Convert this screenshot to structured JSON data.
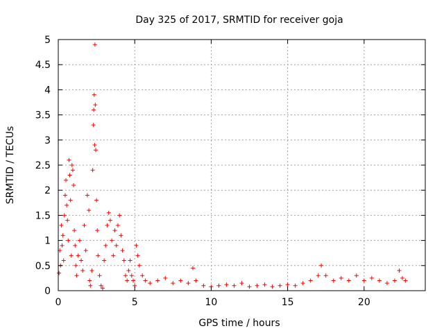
{
  "chart_data": {
    "type": "scatter",
    "title": "Day 325 of 2017, SRMTID for receiver goja",
    "xlabel": "GPS time / hours",
    "ylabel": "SRMTID / TECUs",
    "xlim": [
      0,
      24
    ],
    "ylim": [
      0,
      5
    ],
    "xticks": [
      0,
      5,
      10,
      15,
      20
    ],
    "xtick_labels": [
      "0",
      "5",
      "10",
      "15",
      "20"
    ],
    "yticks": [
      0,
      0.5,
      1,
      1.5,
      2,
      2.5,
      3,
      3.5,
      4,
      4.5,
      5
    ],
    "ytick_labels": [
      "0",
      "0.5",
      "1",
      "1.5",
      "2",
      "2.5",
      "3",
      "3.5",
      "4",
      "4.5",
      "5"
    ],
    "grid": true,
    "marker": "+",
    "color": "#ff0000",
    "series": [
      {
        "name": "SRMTID",
        "points": [
          [
            0.05,
            0.35
          ],
          [
            0.1,
            0.8
          ],
          [
            0.15,
            0.5
          ],
          [
            0.2,
            1.3
          ],
          [
            0.25,
            0.9
          ],
          [
            0.3,
            1.1
          ],
          [
            0.35,
            0.6
          ],
          [
            0.4,
            1.5
          ],
          [
            0.45,
            1.9
          ],
          [
            0.5,
            2.2
          ],
          [
            0.55,
            1.7
          ],
          [
            0.6,
            1.4
          ],
          [
            0.65,
            1.0
          ],
          [
            0.7,
            2.6
          ],
          [
            0.75,
            2.3
          ],
          [
            0.8,
            1.8
          ],
          [
            0.85,
            0.7
          ],
          [
            0.9,
            2.5
          ],
          [
            0.95,
            2.4
          ],
          [
            1.0,
            2.1
          ],
          [
            1.05,
            1.2
          ],
          [
            1.1,
            0.9
          ],
          [
            1.15,
            0.5
          ],
          [
            1.2,
            0.3
          ],
          [
            1.3,
            0.7
          ],
          [
            1.4,
            1.0
          ],
          [
            1.5,
            0.6
          ],
          [
            1.6,
            0.4
          ],
          [
            1.7,
            1.3
          ],
          [
            1.8,
            0.8
          ],
          [
            1.9,
            1.9
          ],
          [
            2.0,
            1.6
          ],
          [
            2.05,
            0.2
          ],
          [
            2.1,
            0.1
          ],
          [
            2.2,
            0.4
          ],
          [
            2.25,
            2.4
          ],
          [
            2.3,
            3.3
          ],
          [
            2.32,
            3.6
          ],
          [
            2.35,
            3.9
          ],
          [
            2.38,
            2.9
          ],
          [
            2.4,
            4.9
          ],
          [
            2.42,
            3.7
          ],
          [
            2.45,
            2.8
          ],
          [
            2.5,
            1.8
          ],
          [
            2.55,
            1.2
          ],
          [
            2.6,
            0.7
          ],
          [
            2.7,
            0.3
          ],
          [
            2.8,
            0.1
          ],
          [
            2.9,
            0.05
          ],
          [
            3.0,
            0.6
          ],
          [
            3.1,
            0.9
          ],
          [
            3.2,
            1.3
          ],
          [
            3.3,
            1.55
          ],
          [
            3.4,
            1.4
          ],
          [
            3.5,
            1.0
          ],
          [
            3.6,
            0.7
          ],
          [
            3.7,
            1.2
          ],
          [
            3.8,
            0.9
          ],
          [
            3.9,
            1.3
          ],
          [
            4.0,
            1.5
          ],
          [
            4.1,
            1.1
          ],
          [
            4.2,
            0.8
          ],
          [
            4.3,
            0.6
          ],
          [
            4.4,
            0.3
          ],
          [
            4.5,
            0.2
          ],
          [
            4.6,
            0.4
          ],
          [
            4.7,
            0.6
          ],
          [
            4.8,
            0.3
          ],
          [
            4.9,
            0.2
          ],
          [
            5.0,
            0.1
          ],
          [
            5.1,
            0.9
          ],
          [
            5.2,
            0.7
          ],
          [
            5.3,
            0.5
          ],
          [
            5.5,
            0.3
          ],
          [
            5.7,
            0.2
          ],
          [
            6.0,
            0.15
          ],
          [
            6.5,
            0.2
          ],
          [
            7.0,
            0.25
          ],
          [
            7.5,
            0.15
          ],
          [
            8.0,
            0.2
          ],
          [
            8.5,
            0.15
          ],
          [
            8.8,
            0.45
          ],
          [
            9.0,
            0.2
          ],
          [
            9.5,
            0.1
          ],
          [
            10.0,
            0.08
          ],
          [
            10.5,
            0.1
          ],
          [
            11.0,
            0.12
          ],
          [
            11.5,
            0.1
          ],
          [
            12.0,
            0.15
          ],
          [
            12.5,
            0.08
          ],
          [
            13.0,
            0.1
          ],
          [
            13.5,
            0.12
          ],
          [
            14.0,
            0.08
          ],
          [
            14.5,
            0.1
          ],
          [
            15.0,
            0.12
          ],
          [
            15.5,
            0.1
          ],
          [
            16.0,
            0.15
          ],
          [
            16.5,
            0.2
          ],
          [
            17.0,
            0.3
          ],
          [
            17.2,
            0.5
          ],
          [
            17.5,
            0.3
          ],
          [
            18.0,
            0.2
          ],
          [
            18.5,
            0.25
          ],
          [
            19.0,
            0.2
          ],
          [
            19.5,
            0.3
          ],
          [
            20.0,
            0.2
          ],
          [
            20.5,
            0.25
          ],
          [
            21.0,
            0.2
          ],
          [
            21.5,
            0.15
          ],
          [
            22.0,
            0.2
          ],
          [
            22.3,
            0.4
          ],
          [
            22.5,
            0.25
          ],
          [
            22.7,
            0.2
          ]
        ]
      }
    ]
  }
}
